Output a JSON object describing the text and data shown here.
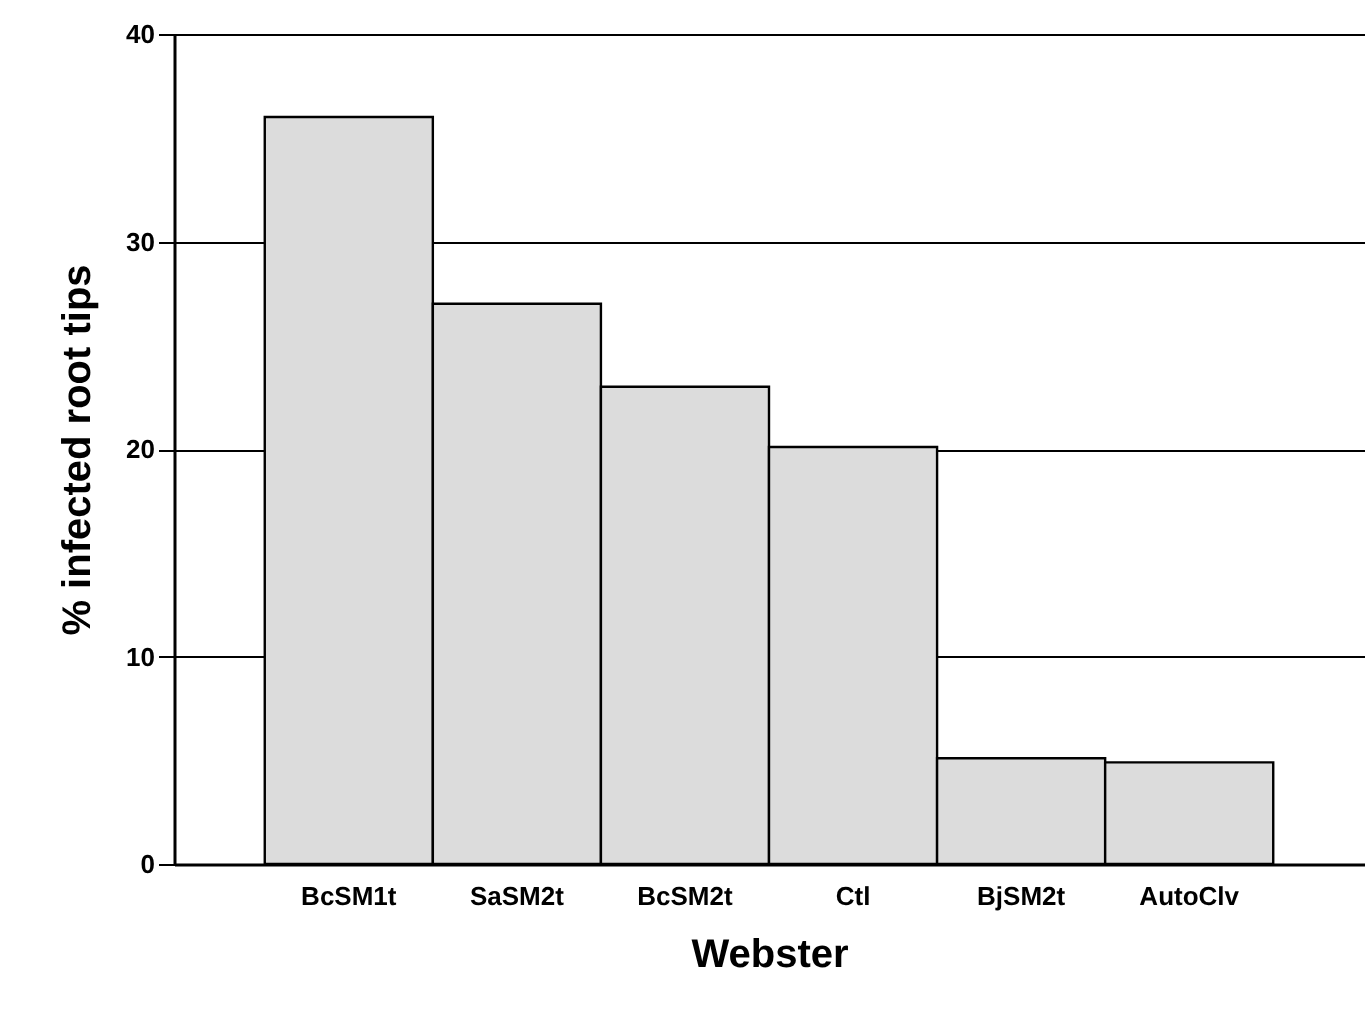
{
  "chart_data": {
    "type": "bar",
    "xlabel": "Webster",
    "ylabel": "% infected root tips",
    "categories": [
      "BcSM1t",
      "SaSM2t",
      "BcSM2t",
      "Ctl",
      "BjSM2t",
      "AutoClv"
    ],
    "values": [
      36,
      27,
      23,
      20.1,
      5.1,
      4.9
    ],
    "color": "#dcdcdc",
    "ylim": [
      0,
      40
    ],
    "yticks": [
      0,
      10,
      20,
      30,
      40
    ],
    "grid": "y"
  }
}
